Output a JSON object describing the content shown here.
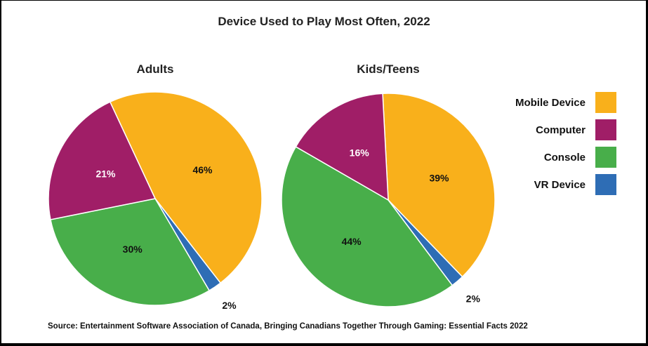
{
  "chart_data": {
    "type": "pie",
    "title": "Device Used to Play Most Often, 2022",
    "categories": [
      "Mobile Device",
      "Computer",
      "Console",
      "VR Device"
    ],
    "colors": {
      "Mobile Device": "#F9B01B",
      "Computer": "#A01E67",
      "Console": "#48AE4A",
      "VR Device": "#2E6DB5"
    },
    "pies": [
      {
        "title": "Adults",
        "values": [
          {
            "category": "Mobile Device",
            "value": 46,
            "label": "46%"
          },
          {
            "category": "VR Device",
            "value": 2,
            "label": "2%"
          },
          {
            "category": "Console",
            "value": 30,
            "label": "30%"
          },
          {
            "category": "Computer",
            "value": 21,
            "label": "21%"
          }
        ]
      },
      {
        "title": "Kids/Teens",
        "values": [
          {
            "category": "Mobile Device",
            "value": 39,
            "label": "39%"
          },
          {
            "category": "VR Device",
            "value": 2,
            "label": "2%"
          },
          {
            "category": "Console",
            "value": 44,
            "label": "44%"
          },
          {
            "category": "Computer",
            "value": 16,
            "label": "16%"
          }
        ]
      }
    ],
    "legend": {
      "position": "right",
      "items": [
        "Mobile Device",
        "Computer",
        "Console",
        "VR Device"
      ]
    },
    "source": "Source: Entertainment Software Association of Canada, Bringing Canadians Together Through Gaming: Essential Facts 2022"
  }
}
